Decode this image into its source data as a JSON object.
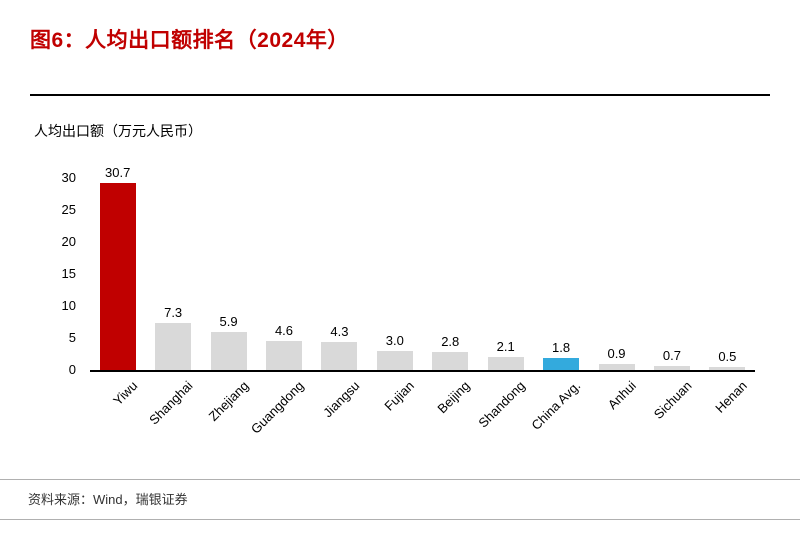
{
  "header": {
    "title": "图6：人均出口额排名（2024年）"
  },
  "chart_data": {
    "type": "bar",
    "title": "图6：人均出口额排名（2024年）",
    "axis_title": "人均出口额（万元人民币）",
    "categories": [
      "Yiwu",
      "Shanghai",
      "Zhejiang",
      "Guangdong",
      "Jiangsu",
      "Fujian",
      "Beijing",
      "Shandong",
      "China Avg.",
      "Anhui",
      "Sichuan",
      "Henan"
    ],
    "values": [
      30.7,
      7.3,
      5.9,
      4.6,
      4.3,
      3.0,
      2.8,
      2.1,
      1.8,
      0.9,
      0.7,
      0.5
    ],
    "value_labels": [
      "30.7",
      "7.3",
      "5.9",
      "4.6",
      "4.3",
      "3.0",
      "2.8",
      "2.1",
      "1.8",
      "0.9",
      "0.7",
      "0.5"
    ],
    "bar_colors": [
      "#c00000",
      "#d9d9d9",
      "#d9d9d9",
      "#d9d9d9",
      "#d9d9d9",
      "#d9d9d9",
      "#d9d9d9",
      "#d9d9d9",
      "#33aadd",
      "#d9d9d9",
      "#d9d9d9",
      "#d9d9d9"
    ],
    "yticks": [
      0,
      5,
      10,
      15,
      20,
      25,
      30
    ],
    "ylim": [
      0,
      32
    ],
    "grid": false,
    "legend": "none",
    "colors": {
      "highlight": "#c00000",
      "average": "#33aadd",
      "default": "#d9d9d9"
    }
  },
  "footer": {
    "source": "资料来源：Wind，瑞银证券"
  }
}
